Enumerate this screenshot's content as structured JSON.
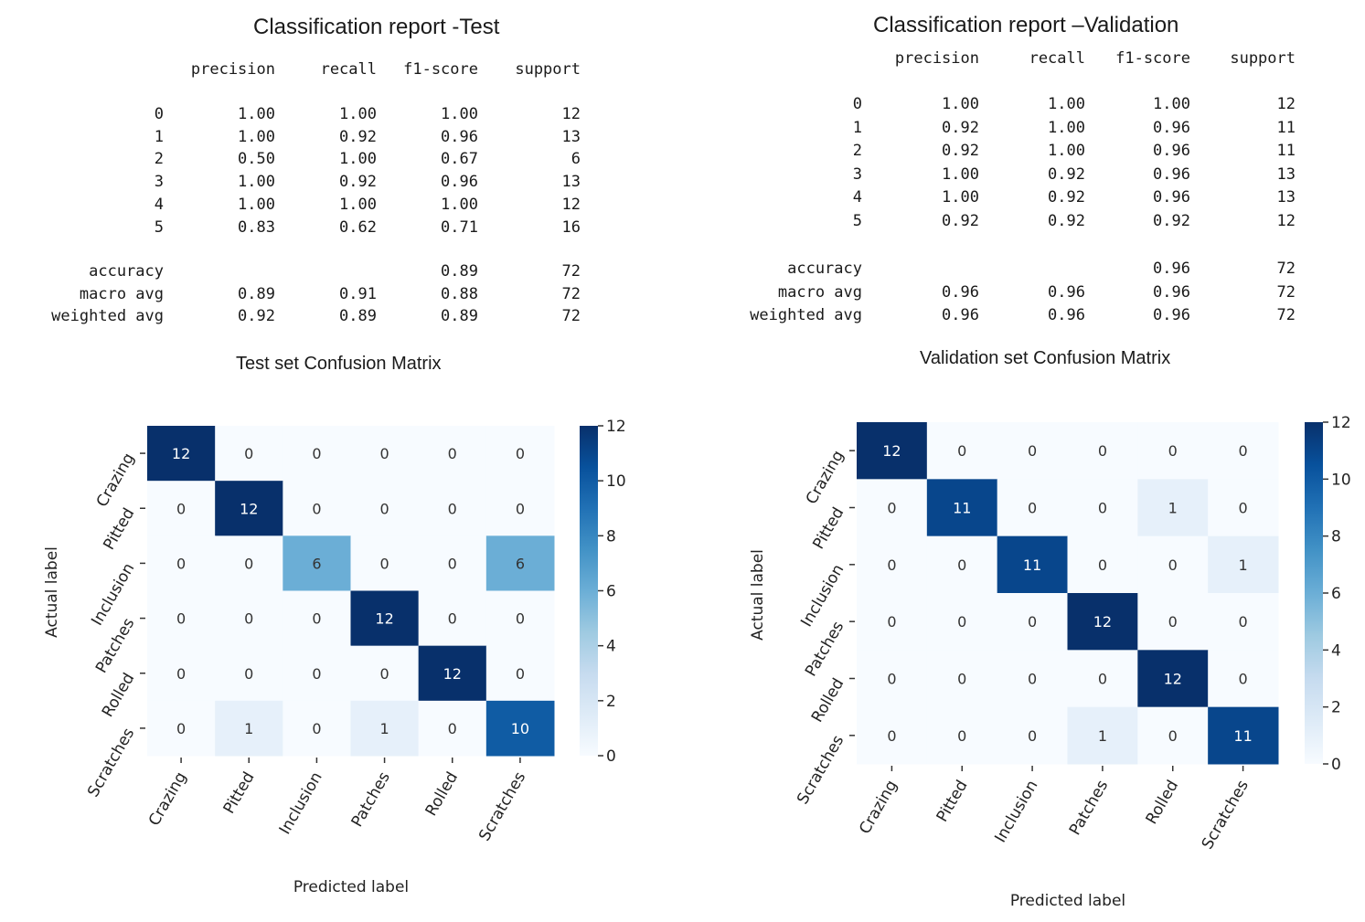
{
  "chart_data": [
    {
      "type": "table",
      "title": "Classification report -Test",
      "columns": [
        "precision",
        "recall",
        "f1-score",
        "support"
      ],
      "rows": [
        {
          "label": "0",
          "values": [
            "1.00",
            "1.00",
            "1.00",
            "12"
          ]
        },
        {
          "label": "1",
          "values": [
            "1.00",
            "0.92",
            "0.96",
            "13"
          ]
        },
        {
          "label": "2",
          "values": [
            "0.50",
            "1.00",
            "0.67",
            "6"
          ]
        },
        {
          "label": "3",
          "values": [
            "1.00",
            "0.92",
            "0.96",
            "13"
          ]
        },
        {
          "label": "4",
          "values": [
            "1.00",
            "1.00",
            "1.00",
            "12"
          ]
        },
        {
          "label": "5",
          "values": [
            "0.83",
            "0.62",
            "0.71",
            "16"
          ]
        }
      ],
      "summary": [
        {
          "label": "accuracy",
          "values": [
            "",
            "",
            "0.89",
            "72"
          ]
        },
        {
          "label": "macro avg",
          "values": [
            "0.89",
            "0.91",
            "0.88",
            "72"
          ]
        },
        {
          "label": "weighted avg",
          "values": [
            "0.92",
            "0.89",
            "0.89",
            "72"
          ]
        }
      ]
    },
    {
      "type": "table",
      "title": "Classification report –Validation",
      "columns": [
        "precision",
        "recall",
        "f1-score",
        "support"
      ],
      "rows": [
        {
          "label": "0",
          "values": [
            "1.00",
            "1.00",
            "1.00",
            "12"
          ]
        },
        {
          "label": "1",
          "values": [
            "0.92",
            "1.00",
            "0.96",
            "11"
          ]
        },
        {
          "label": "2",
          "values": [
            "0.92",
            "1.00",
            "0.96",
            "11"
          ]
        },
        {
          "label": "3",
          "values": [
            "1.00",
            "0.92",
            "0.96",
            "13"
          ]
        },
        {
          "label": "4",
          "values": [
            "1.00",
            "0.92",
            "0.96",
            "13"
          ]
        },
        {
          "label": "5",
          "values": [
            "0.92",
            "0.92",
            "0.92",
            "12"
          ]
        }
      ],
      "summary": [
        {
          "label": "accuracy",
          "values": [
            "",
            "",
            "0.96",
            "72"
          ]
        },
        {
          "label": "macro avg",
          "values": [
            "0.96",
            "0.96",
            "0.96",
            "72"
          ]
        },
        {
          "label": "weighted avg",
          "values": [
            "0.96",
            "0.96",
            "0.96",
            "72"
          ]
        }
      ]
    },
    {
      "type": "heatmap",
      "title": "Test set Confusion Matrix",
      "xlabel": "Predicted label",
      "ylabel": "Actual label",
      "categories": [
        "Crazing",
        "Pitted",
        "Inclusion",
        "Patches",
        "Rolled",
        "Scratches"
      ],
      "matrix": [
        [
          12,
          0,
          0,
          0,
          0,
          0
        ],
        [
          0,
          12,
          0,
          0,
          0,
          0
        ],
        [
          0,
          0,
          6,
          0,
          0,
          6
        ],
        [
          0,
          0,
          0,
          12,
          0,
          0
        ],
        [
          0,
          0,
          0,
          0,
          12,
          0
        ],
        [
          0,
          1,
          0,
          1,
          0,
          10
        ]
      ],
      "colorbar": {
        "min": 0,
        "max": 12,
        "ticks": [
          0,
          2,
          4,
          6,
          8,
          10,
          12
        ]
      },
      "colormap": [
        "#f7fbff",
        "#deebf7",
        "#c6dbef",
        "#9ecae1",
        "#6baed6",
        "#4292c6",
        "#2171b5",
        "#08519c",
        "#08306b"
      ]
    },
    {
      "type": "heatmap",
      "title": "Validation set Confusion Matrix",
      "xlabel": "Predicted label",
      "ylabel": "Actual label",
      "categories": [
        "Crazing",
        "Pitted",
        "Inclusion",
        "Patches",
        "Rolled",
        "Scratches"
      ],
      "matrix": [
        [
          12,
          0,
          0,
          0,
          0,
          0
        ],
        [
          0,
          11,
          0,
          0,
          1,
          0
        ],
        [
          0,
          0,
          11,
          0,
          0,
          1
        ],
        [
          0,
          0,
          0,
          12,
          0,
          0
        ],
        [
          0,
          0,
          0,
          0,
          12,
          0
        ],
        [
          0,
          0,
          0,
          1,
          0,
          11
        ]
      ],
      "colorbar": {
        "min": 0,
        "max": 12,
        "ticks": [
          0,
          2,
          4,
          6,
          8,
          10,
          12
        ]
      },
      "colormap": [
        "#f7fbff",
        "#deebf7",
        "#c6dbef",
        "#9ecae1",
        "#6baed6",
        "#4292c6",
        "#2171b5",
        "#08519c",
        "#08306b"
      ]
    }
  ]
}
